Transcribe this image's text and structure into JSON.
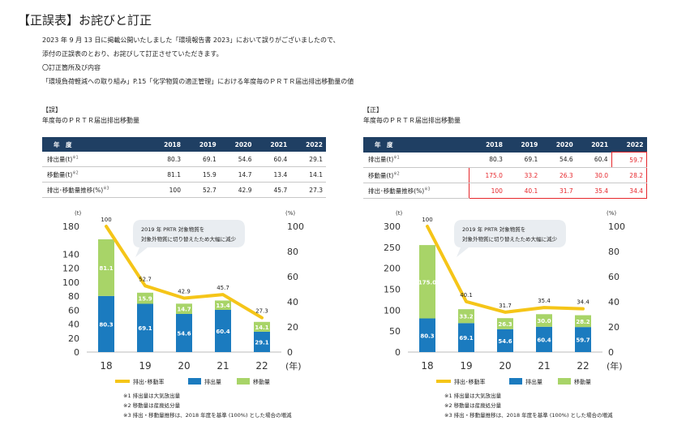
{
  "title": "【正誤表】お詫びと訂正",
  "intro": {
    "line1": "2023 年 9 月 13 日に掲載公開いたしました「環境報告書 2023」において誤りがございましたので、",
    "line2": "添付の正誤表のとおり、お詫びして訂正させていただきます。",
    "line3": "〇訂正箇所及び内容",
    "line4": "「環境負荷軽減への取り組み」P.15「化学物質の適正管理」における年度毎のＰＲＴＲ届出排出移動量の値"
  },
  "colors": {
    "header": "#1f3f63",
    "emission": "#1b7bbf",
    "transfer": "#a8d468",
    "ratio": "#f5c518",
    "error": "#e6262b",
    "bubble": "#e9edf1"
  },
  "panels": [
    {
      "tag": "【誤】",
      "title": "年度毎のＰＲＴＲ届出排出移動量",
      "table": {
        "header": [
          "年　度",
          "2018",
          "2019",
          "2020",
          "2021",
          "2022"
        ],
        "rows": [
          {
            "label": "排出量(t)",
            "sup": "※1",
            "values": [
              "80.3",
              "69.1",
              "54.6",
              "60.4",
              "29.1"
            ]
          },
          {
            "label": "移動量(t)",
            "sup": "※2",
            "values": [
              "81.1",
              "15.9",
              "14.7",
              "13.4",
              "14.1"
            ]
          },
          {
            "label": "排出･移動量推移(%)",
            "sup": "※3",
            "values": [
              "100",
              "52.7",
              "42.9",
              "45.7",
              "27.3"
            ]
          }
        ]
      },
      "chart_data": {
        "type": "bar",
        "categories": [
          "18",
          "19",
          "20",
          "21",
          "22"
        ],
        "series": [
          {
            "name": "排出量",
            "values": [
              80.3,
              69.1,
              54.6,
              60.4,
              29.1
            ]
          },
          {
            "name": "移動量",
            "values": [
              81.1,
              15.9,
              14.7,
              13.4,
              14.1
            ]
          },
          {
            "name": "排出･移動率",
            "values": [
              100,
              52.7,
              42.9,
              45.7,
              27.3
            ]
          }
        ],
        "ylim": [
          0,
          180
        ],
        "y_ticks": [
          "180",
          "140",
          "120",
          "100",
          "80",
          "60",
          "40",
          "20",
          "0"
        ],
        "y_tick_values": [
          180,
          140,
          120,
          100,
          80,
          60,
          40,
          20,
          0
        ],
        "ylim2": [
          0,
          100
        ],
        "y2_ticks": [
          "100",
          "80",
          "60",
          "40",
          "20",
          "0"
        ],
        "ylabel": "(t)",
        "y2label": "(%)",
        "xlabel": "(年)",
        "bubble": [
          "2019 年 PRTR 対象物質を",
          "対象外物質に切り替えたため大幅に減少"
        ],
        "legend": [
          "排出･移動率",
          "排出量",
          "移動量"
        ]
      },
      "notes": [
        "※1  排出量は大気放出量",
        "※2  移動量は産廃処分量",
        "※3  排出・移動量推移は、2018 年度を基準 (100%) とした場合の増減"
      ]
    },
    {
      "tag": "【正】",
      "title": "年度毎のＰＲＴＲ届出排出移動量",
      "table": {
        "header": [
          "年　度",
          "2018",
          "2019",
          "2020",
          "2021",
          "2022"
        ],
        "rows": [
          {
            "label": "排出量(t)",
            "sup": "※1",
            "values": [
              "80.3",
              "69.1",
              "54.6",
              "60.4",
              "59.7"
            ]
          },
          {
            "label": "移動量(t)",
            "sup": "※2",
            "values": [
              "175.0",
              "33.2",
              "26.3",
              "30.0",
              "28.2"
            ]
          },
          {
            "label": "排出･移動量推移(%)",
            "sup": "※3",
            "values": [
              "100",
              "40.1",
              "31.7",
              "35.4",
              "34.4"
            ]
          }
        ]
      },
      "chart_data": {
        "type": "bar",
        "categories": [
          "18",
          "19",
          "20",
          "21",
          "22"
        ],
        "series": [
          {
            "name": "排出量",
            "values": [
              80.3,
              69.1,
              54.6,
              60.4,
              59.7
            ]
          },
          {
            "name": "移動量",
            "values": [
              175.0,
              33.2,
              26.3,
              30.0,
              28.2
            ]
          },
          {
            "name": "排出･移動率",
            "values": [
              100,
              40.1,
              31.7,
              35.4,
              34.4
            ]
          }
        ],
        "ylim": [
          0,
          300
        ],
        "y_ticks": [
          "300",
          "250",
          "200",
          "150",
          "100",
          "50",
          "0"
        ],
        "y_tick_values": [
          300,
          250,
          200,
          150,
          100,
          50,
          0
        ],
        "ylim2": [
          0,
          100
        ],
        "y2_ticks": [
          "100",
          "80",
          "60",
          "40",
          "20",
          "0"
        ],
        "ylabel": "(t)",
        "y2label": "(%)",
        "xlabel": "(年)",
        "bubble": [
          "2019 年 PRTR 対象物質を",
          "対象外物質に切り替えたため大幅に減少"
        ],
        "legend": [
          "排出･移動率",
          "排出量",
          "移動量"
        ]
      },
      "notes": [
        "※1  排出量は大気放出量",
        "※2  移動量は産廃処分量",
        "※3  排出・移動量推移は、2018 年度を基準 (100%) とした場合の増減"
      ]
    }
  ]
}
